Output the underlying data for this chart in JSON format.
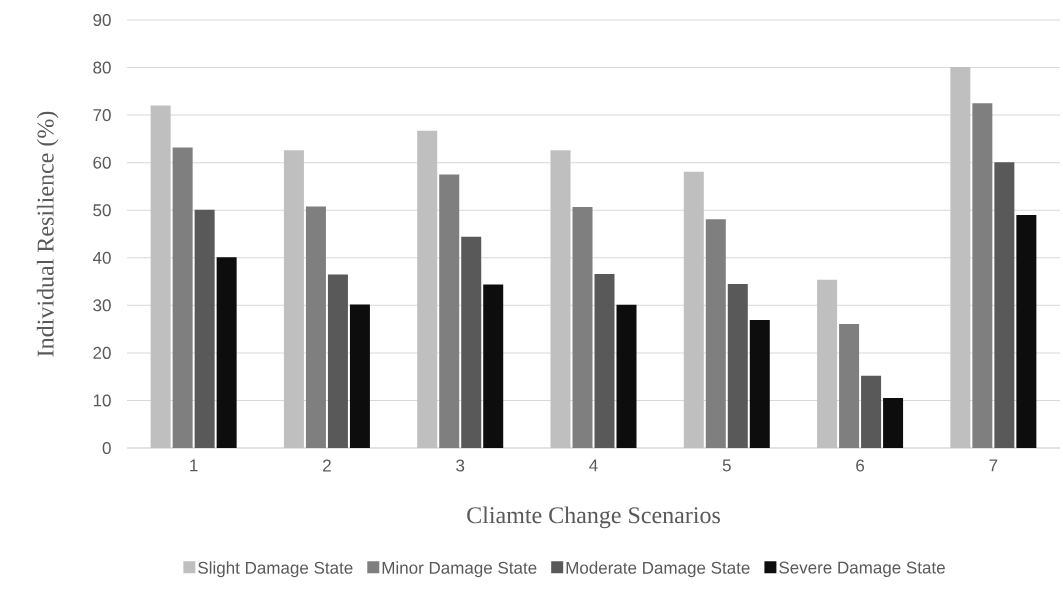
{
  "chart_data": {
    "type": "bar",
    "xlabel": "Cliamte Change Scenarios",
    "ylabel": "Individual Resilience (%)",
    "categories": [
      "1",
      "2",
      "3",
      "4",
      "5",
      "6",
      "7"
    ],
    "series": [
      {
        "name": "Slight Damage State",
        "color": "#bfbfbf",
        "values": [
          72,
          62.6,
          66.7,
          62.6,
          58.1,
          35.4,
          80.1
        ]
      },
      {
        "name": "Minor Damage State",
        "color": "#7f7f7f",
        "values": [
          63.2,
          50.8,
          57.5,
          50.7,
          48.1,
          26.1,
          72.5
        ]
      },
      {
        "name": "Moderate Damage State",
        "color": "#595959",
        "values": [
          50.1,
          36.5,
          44.4,
          36.6,
          34.5,
          15.2,
          60.1
        ]
      },
      {
        "name": "Severe Damage State",
        "color": "#0d0d0d",
        "values": [
          40.1,
          30.2,
          34.4,
          30.1,
          26.9,
          10.5,
          49.0
        ]
      }
    ],
    "ylim": [
      0,
      90
    ],
    "yticks": [
      0,
      10,
      20,
      30,
      40,
      50,
      60,
      70,
      80,
      90
    ],
    "grid": "y",
    "legend": "bottom"
  }
}
